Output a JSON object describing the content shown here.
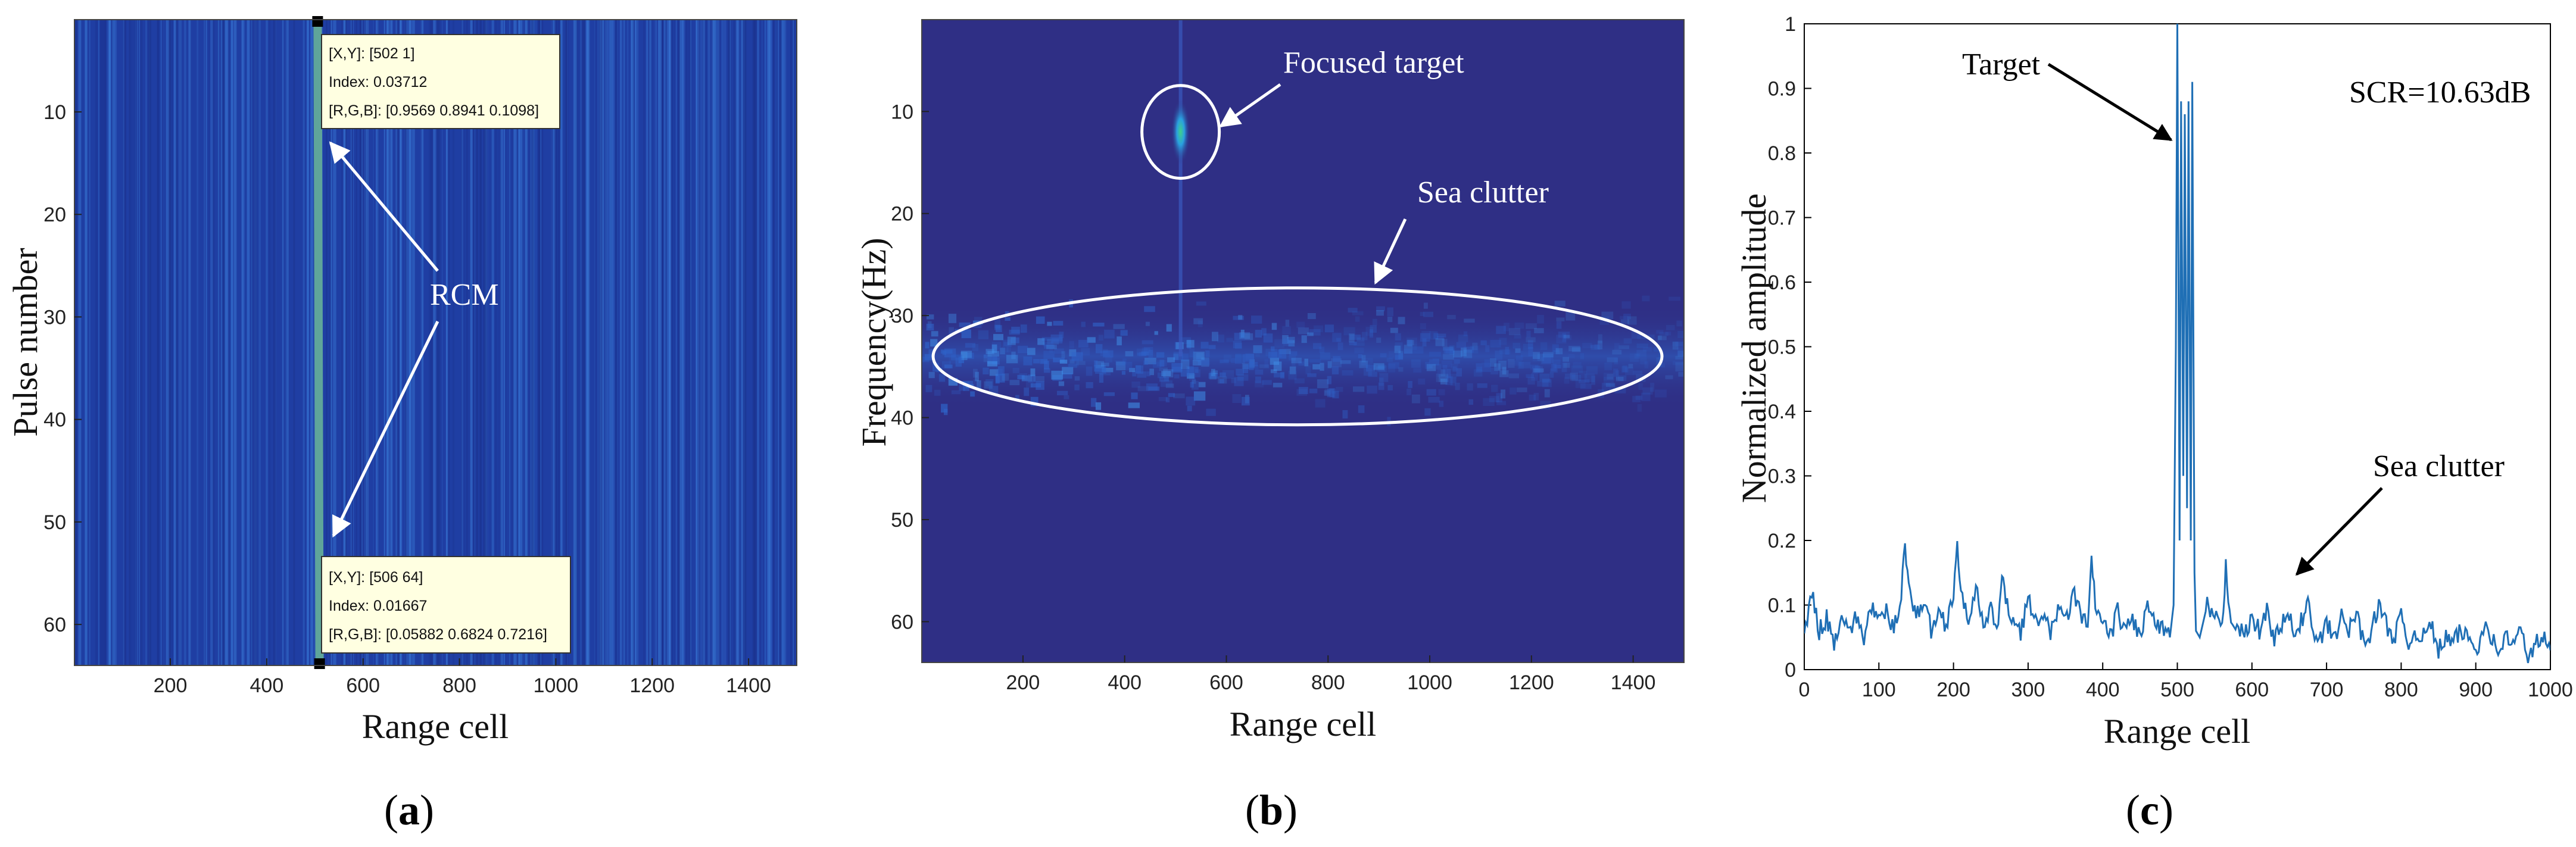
{
  "colors": {
    "background_a": "#1f3ea3",
    "background_b": "#2f2f85",
    "stripe": "#3a7bd8",
    "rcm_band": "#5fa59a",
    "line": "#1f6fb5",
    "annotation": "#ffffff",
    "datatip_bg": "#ffffe1"
  },
  "panels": {
    "a": {
      "label_prefix": "(",
      "label_bold": "a",
      "label_suffix": ")"
    },
    "b": {
      "label_prefix": "(",
      "label_bold": "b",
      "label_suffix": ")"
    },
    "c": {
      "label_prefix": "(",
      "label_bold": "c",
      "label_suffix": ")"
    }
  },
  "chart_data": [
    {
      "type": "heatmap",
      "title": "",
      "xlabel": "Range cell",
      "ylabel": "Pulse number",
      "xlim": [
        1,
        1500
      ],
      "ylim": [
        1,
        64
      ],
      "y_reversed": true,
      "xticks": [
        200,
        400,
        600,
        800,
        1000,
        1200,
        1400
      ],
      "yticks": [
        10,
        20,
        30,
        40,
        50,
        60
      ],
      "annotations": [
        {
          "text": "RCM",
          "arrow_targets": [
            [
              502,
              11
            ],
            [
              506,
              53
            ]
          ]
        }
      ],
      "datatips": [
        {
          "line1": "[X,Y]: [502 1]",
          "line2": "Index: 0.03712",
          "line3": "[R,G,B]: [0.9569 0.8941 0.1098]"
        },
        {
          "line1": "[X,Y]: [506 64]",
          "line2": "Index: 0.01667",
          "line3": "[R,G,B]: [0.05882 0.6824 0.7216]"
        }
      ],
      "rcm_track": {
        "x_start": 502,
        "y_start": 1,
        "x_end": 506,
        "y_end": 64
      }
    },
    {
      "type": "heatmap",
      "title": "",
      "xlabel": "Range cell",
      "ylabel": "Frequency(Hz)",
      "xlim": [
        1,
        1500
      ],
      "ylim": [
        1,
        64
      ],
      "y_reversed": true,
      "xticks": [
        200,
        400,
        600,
        800,
        1000,
        1200,
        1400
      ],
      "yticks": [
        10,
        20,
        30,
        40,
        50,
        60
      ],
      "annotations": [
        {
          "text": "Focused target",
          "target": [
            510,
            12
          ]
        },
        {
          "text": "Sea clutter",
          "target": [
            900,
            28
          ]
        }
      ],
      "focused_target": {
        "x": 510,
        "y": 12
      },
      "clutter_band": {
        "x_range": [
          1,
          1500
        ],
        "y_center": 34,
        "y_halfwidth": 5
      }
    },
    {
      "type": "line",
      "title": "",
      "xlabel": "Range cell",
      "ylabel": "Normalized amplitude",
      "xlim": [
        0,
        1000
      ],
      "ylim": [
        0,
        1
      ],
      "xticks": [
        0,
        100,
        200,
        300,
        400,
        500,
        600,
        700,
        800,
        900,
        1000
      ],
      "yticks": [
        0,
        0.1,
        0.2,
        0.3,
        0.4,
        0.5,
        0.6,
        0.7,
        0.8,
        0.9,
        1
      ],
      "ytick_labels": [
        "0",
        "0.1",
        "0.2",
        "0.3",
        "0.4",
        "0.5",
        "0.6",
        "0.7",
        "0.8",
        "0.9",
        "1"
      ],
      "text_box": "SCR=10.63dB",
      "annotations": [
        {
          "text": "Target",
          "target": [
            502,
            0.83
          ]
        },
        {
          "text": "Sea clutter",
          "target": [
            640,
            0.07
          ]
        }
      ],
      "series": [
        {
          "x": [
            0,
            10,
            20,
            30,
            40,
            50,
            60,
            70,
            80,
            90,
            100,
            110,
            120,
            130,
            135,
            140,
            150,
            160,
            170,
            180,
            190,
            200,
            205,
            210,
            220,
            230,
            240,
            250,
            260,
            265,
            270,
            280,
            290,
            300,
            310,
            320,
            330,
            340,
            350,
            360,
            370,
            380,
            385,
            390,
            400,
            410,
            420,
            430,
            440,
            450,
            460,
            470,
            480,
            490,
            495,
            498,
            500,
            503,
            505,
            508,
            510,
            513,
            515,
            518,
            520,
            523,
            525,
            530,
            540,
            550,
            560,
            565,
            570,
            580,
            590,
            600,
            610,
            620,
            630,
            640,
            650,
            660,
            670,
            675,
            680,
            690,
            700,
            710,
            720,
            730,
            740,
            750,
            760,
            770,
            780,
            790,
            800,
            810,
            820,
            830,
            840,
            850,
            860,
            870,
            880,
            890,
            900,
            910,
            915,
            920,
            930,
            940,
            950,
            960,
            970,
            980,
            990,
            1000
          ],
          "y": [
            0.05,
            0.12,
            0.06,
            0.08,
            0.04,
            0.09,
            0.06,
            0.08,
            0.05,
            0.1,
            0.07,
            0.09,
            0.06,
            0.12,
            0.2,
            0.13,
            0.08,
            0.11,
            0.06,
            0.09,
            0.07,
            0.12,
            0.2,
            0.11,
            0.08,
            0.13,
            0.06,
            0.09,
            0.07,
            0.15,
            0.1,
            0.08,
            0.06,
            0.11,
            0.07,
            0.09,
            0.05,
            0.1,
            0.07,
            0.12,
            0.09,
            0.06,
            0.17,
            0.1,
            0.07,
            0.05,
            0.09,
            0.06,
            0.08,
            0.05,
            0.1,
            0.07,
            0.06,
            0.05,
            0.1,
            0.5,
            1.0,
            0.2,
            0.88,
            0.3,
            0.86,
            0.25,
            0.88,
            0.2,
            0.91,
            0.15,
            0.06,
            0.05,
            0.1,
            0.08,
            0.06,
            0.16,
            0.09,
            0.07,
            0.05,
            0.08,
            0.06,
            0.09,
            0.05,
            0.07,
            0.08,
            0.05,
            0.09,
            0.11,
            0.06,
            0.04,
            0.07,
            0.05,
            0.08,
            0.06,
            0.09,
            0.04,
            0.06,
            0.1,
            0.07,
            0.05,
            0.08,
            0.04,
            0.06,
            0.05,
            0.07,
            0.03,
            0.05,
            0.04,
            0.06,
            0.05,
            0.03,
            0.06,
            0.08,
            0.05,
            0.03,
            0.05,
            0.04,
            0.06,
            0.02,
            0.04,
            0.05,
            0.03
          ]
        }
      ]
    }
  ]
}
